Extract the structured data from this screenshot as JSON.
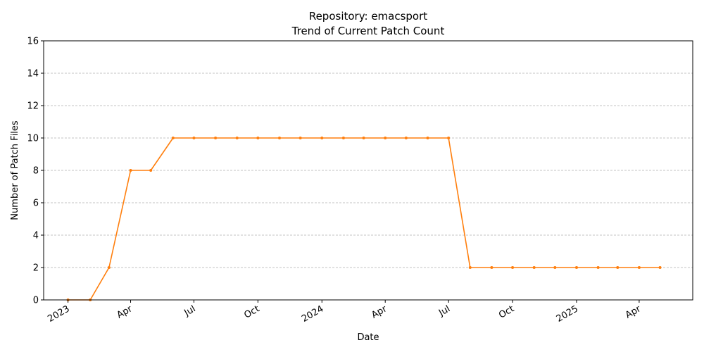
{
  "chart_data": {
    "type": "line",
    "title_line1": "Repository: emacsport",
    "title_line2": "Trend of Current Patch Count",
    "xlabel": "Date",
    "ylabel": "Number of Patch Files",
    "ylim": [
      0,
      16
    ],
    "yticks": [
      0,
      2,
      4,
      6,
      8,
      10,
      12,
      14,
      16
    ],
    "grid": "horizontal dashed",
    "line_color": "#ff7f0e",
    "xlim_days": [
      -35,
      898
    ],
    "xticks": [
      {
        "label": "2023",
        "day": 0
      },
      {
        "label": "Apr",
        "day": 90
      },
      {
        "label": "Jul",
        "day": 181
      },
      {
        "label": "Oct",
        "day": 273
      },
      {
        "label": "2024",
        "day": 365
      },
      {
        "label": "Apr",
        "day": 456
      },
      {
        "label": "Jul",
        "day": 547
      },
      {
        "label": "Oct",
        "day": 639
      },
      {
        "label": "2025",
        "day": 731
      },
      {
        "label": "Apr",
        "day": 821
      }
    ],
    "series": [
      {
        "name": "Current Patch Count",
        "points": [
          {
            "day": 0,
            "value": 0
          },
          {
            "day": 32,
            "value": 0
          },
          {
            "day": 59,
            "value": 2
          },
          {
            "day": 90,
            "value": 8
          },
          {
            "day": 119,
            "value": 8
          },
          {
            "day": 151,
            "value": 10
          },
          {
            "day": 181,
            "value": 10
          },
          {
            "day": 212,
            "value": 10
          },
          {
            "day": 243,
            "value": 10
          },
          {
            "day": 273,
            "value": 10
          },
          {
            "day": 304,
            "value": 10
          },
          {
            "day": 334,
            "value": 10
          },
          {
            "day": 365,
            "value": 10
          },
          {
            "day": 396,
            "value": 10
          },
          {
            "day": 425,
            "value": 10
          },
          {
            "day": 456,
            "value": 10
          },
          {
            "day": 486,
            "value": 10
          },
          {
            "day": 517,
            "value": 10
          },
          {
            "day": 547,
            "value": 10
          },
          {
            "day": 578,
            "value": 2
          },
          {
            "day": 609,
            "value": 2
          },
          {
            "day": 639,
            "value": 2
          },
          {
            "day": 670,
            "value": 2
          },
          {
            "day": 700,
            "value": 2
          },
          {
            "day": 731,
            "value": 2
          },
          {
            "day": 762,
            "value": 2
          },
          {
            "day": 790,
            "value": 2
          },
          {
            "day": 821,
            "value": 2
          },
          {
            "day": 851,
            "value": 2
          }
        ]
      }
    ]
  }
}
